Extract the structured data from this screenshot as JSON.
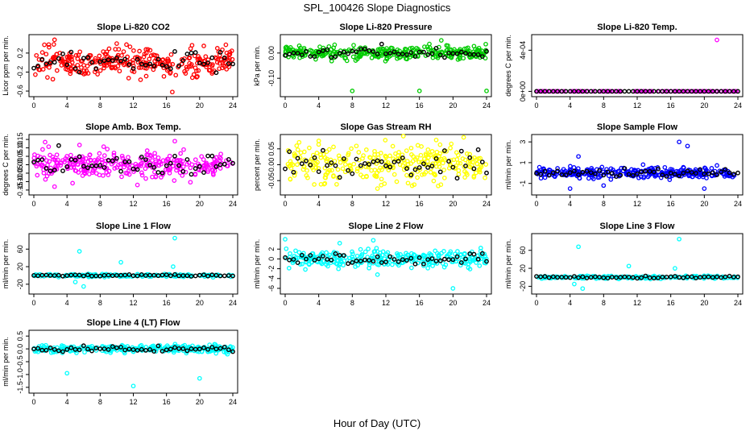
{
  "figure": {
    "title": "SPL_100426  Slope Diagnostics",
    "xlabel": "Hour of Day (UTC)"
  },
  "chart_data": [
    {
      "type": "scatter",
      "title": "Slope Li-820 CO2",
      "ylabel": "Licor ppm per min.",
      "color": "#ff0000",
      "xlim": [
        0,
        24
      ],
      "ylim": [
        -0.65,
        0.52
      ],
      "xticks": [
        0,
        4,
        8,
        12,
        16,
        20,
        24
      ],
      "xtick_labels": [
        "0",
        "4",
        "8",
        "12",
        "16",
        "20",
        "24"
      ],
      "yticks": [
        -0.6,
        -0.2,
        0.2
      ],
      "ytick_labels": [
        "-0.6",
        "-0.2",
        "0.2"
      ],
      "center": 0.0,
      "spread": 0.14,
      "n": 300,
      "outliers": [
        [
          2.5,
          0.48
        ],
        [
          16.7,
          -0.62
        ],
        [
          1.8,
          0.38
        ],
        [
          10.0,
          0.4
        ],
        [
          20.5,
          0.35
        ]
      ]
    },
    {
      "type": "scatter",
      "title": "Slope Li-820 Pressure",
      "ylabel": "kPa per min.",
      "color": "#00cc00",
      "xlim": [
        0,
        24
      ],
      "ylim": [
        -0.16,
        0.06
      ],
      "xticks": [
        0,
        4,
        8,
        12,
        16,
        20,
        24
      ],
      "xtick_labels": [
        "0",
        "4",
        "8",
        "12",
        "16",
        "20",
        "24"
      ],
      "yticks": [
        -0.1,
        0.0
      ],
      "ytick_labels": [
        "-0.10",
        "0.00"
      ],
      "center": 0.0,
      "spread": 0.012,
      "n": 300,
      "outliers": [
        [
          8.0,
          -0.15
        ],
        [
          16.0,
          -0.15
        ],
        [
          24.0,
          -0.15
        ],
        [
          18.6,
          0.05
        ]
      ]
    },
    {
      "type": "scatter",
      "title": "Slope Li-820 Temp.",
      "ylabel": "degrees C per min.",
      "color": "#ff00ff",
      "xlim": [
        0,
        24
      ],
      "ylim": [
        -2e-05,
        0.00052
      ],
      "xticks": [
        0,
        4,
        8,
        12,
        16,
        20,
        24
      ],
      "xtick_labels": [
        "0",
        "4",
        "8",
        "12",
        "16",
        "20",
        "24"
      ],
      "yticks": [
        0,
        0.0004
      ],
      "ytick_labels": [
        "0e+00",
        "4e-04"
      ],
      "center": 0.0,
      "spread": 0.0,
      "n": 120,
      "outliers": [
        [
          21.5,
          0.0005
        ]
      ]
    },
    {
      "type": "scatter",
      "title": "Slope Amb. Box Temp.",
      "ylabel": "degrees C per min.",
      "color": "#ff00ff",
      "xlim": [
        0,
        24
      ],
      "ylim": [
        -0.16,
        0.16
      ],
      "xticks": [
        0,
        4,
        8,
        12,
        16,
        20,
        24
      ],
      "xtick_labels": [
        "0",
        "4",
        "8",
        "12",
        "16",
        "20",
        "24"
      ],
      "yticks": [
        -0.15,
        -0.1,
        -0.05,
        0.0,
        0.05,
        0.1,
        0.15
      ],
      "ytick_labels": [
        "-0.15",
        "-0.10",
        "-0.05",
        "0.00",
        "0.05",
        "0.10",
        "0.15"
      ],
      "center": 0.0,
      "spread": 0.04,
      "n": 300,
      "outliers": [
        [
          2.5,
          -0.13
        ],
        [
          12.5,
          -0.12
        ],
        [
          17.0,
          0.14
        ]
      ]
    },
    {
      "type": "scatter",
      "title": "Slope Gas Stream RH",
      "ylabel": "percent per min.",
      "color": "#ffff00",
      "xlim": [
        0,
        24
      ],
      "ylim": [
        -0.085,
        0.085
      ],
      "xticks": [
        0,
        4,
        8,
        12,
        16,
        20,
        24
      ],
      "xtick_labels": [
        "0",
        "4",
        "8",
        "12",
        "16",
        "20",
        "24"
      ],
      "yticks": [
        -0.05,
        0.0,
        0.05
      ],
      "ytick_labels": [
        "-0.05",
        "0.00",
        "0.05"
      ],
      "center": 0.0,
      "spread": 0.028,
      "n": 300,
      "outliers": [
        [
          4.0,
          0.075
        ],
        [
          18.0,
          0.078
        ],
        [
          11.0,
          -0.075
        ]
      ]
    },
    {
      "type": "scatter",
      "title": "Slope Sample Flow",
      "ylabel": "ml/min per min.",
      "color": "#0000ff",
      "xlim": [
        0,
        24
      ],
      "ylim": [
        -1.8,
        3.4
      ],
      "xticks": [
        0,
        4,
        8,
        12,
        16,
        20,
        24
      ],
      "xtick_labels": [
        "0",
        "4",
        "8",
        "12",
        "16",
        "20",
        "24"
      ],
      "yticks": [
        -1,
        1,
        3
      ],
      "ytick_labels": [
        "-1",
        "1",
        "3"
      ],
      "center": 0.0,
      "spread": 0.25,
      "n": 300,
      "outliers": [
        [
          17.0,
          3.0
        ],
        [
          18.0,
          2.6
        ],
        [
          4.0,
          -1.5
        ],
        [
          20.0,
          -1.5
        ],
        [
          5.0,
          1.6
        ],
        [
          8.0,
          -1.2
        ]
      ]
    },
    {
      "type": "scatter",
      "title": "Slope Line 1 Flow",
      "ylabel": "ml/min per min.",
      "color": "#00ffff",
      "xlim": [
        0,
        24
      ],
      "ylim": [
        -35,
        88
      ],
      "xticks": [
        0,
        4,
        8,
        12,
        16,
        20,
        24
      ],
      "xtick_labels": [
        "0",
        "4",
        "8",
        "12",
        "16",
        "20",
        "24"
      ],
      "yticks": [
        -20,
        20,
        60
      ],
      "ytick_labels": [
        "-20",
        "20",
        "60"
      ],
      "center": 0.0,
      "spread": 1.5,
      "n": 200,
      "outliers": [
        [
          5.5,
          55
        ],
        [
          17.0,
          85
        ],
        [
          6.0,
          -25
        ],
        [
          10.5,
          30
        ],
        [
          5.0,
          -15
        ],
        [
          16.8,
          20
        ]
      ]
    },
    {
      "type": "scatter",
      "title": "Slope Line 2 Flow",
      "ylabel": "ml/min per min.",
      "color": "#00ffff",
      "xlim": [
        0,
        24
      ],
      "ylim": [
        -6.5,
        4.5
      ],
      "xticks": [
        0,
        4,
        8,
        12,
        16,
        20,
        24
      ],
      "xtick_labels": [
        "0",
        "4",
        "8",
        "12",
        "16",
        "20",
        "24"
      ],
      "yticks": [
        -6,
        -4,
        -2,
        0,
        2
      ],
      "ytick_labels": [
        "-6",
        "-4",
        "-2",
        "0",
        "2"
      ],
      "center": 0.0,
      "spread": 0.8,
      "n": 300,
      "outliers": [
        [
          0.0,
          4.0
        ],
        [
          10.5,
          3.8
        ],
        [
          20.0,
          -6.0
        ],
        [
          11.0,
          -3.2
        ],
        [
          6.5,
          3.2
        ]
      ]
    },
    {
      "type": "scatter",
      "title": "Slope Line 3 Flow",
      "ylabel": "ml/min per min.",
      "color": "#00ffff",
      "xlim": [
        0,
        24
      ],
      "ylim": [
        -30,
        90
      ],
      "xticks": [
        0,
        4,
        8,
        12,
        16,
        20,
        24
      ],
      "xtick_labels": [
        "0",
        "4",
        "8",
        "12",
        "16",
        "20",
        "24"
      ],
      "yticks": [
        -20,
        20,
        60
      ],
      "ytick_labels": [
        "-20",
        "20",
        "60"
      ],
      "center": 0.0,
      "spread": 1.5,
      "n": 200,
      "outliers": [
        [
          17.0,
          85
        ],
        [
          5.0,
          68
        ],
        [
          11.0,
          25
        ],
        [
          5.5,
          -25
        ],
        [
          4.5,
          -15
        ],
        [
          16.5,
          20
        ]
      ]
    },
    {
      "type": "scatter",
      "title": "Slope Line 4 (LT) Flow",
      "ylabel": "ml/min per min.",
      "color": "#00ffff",
      "xlim": [
        0,
        24
      ],
      "ylim": [
        -1.6,
        0.6
      ],
      "xticks": [
        0,
        4,
        8,
        12,
        16,
        20,
        24
      ],
      "xtick_labels": [
        "0",
        "4",
        "8",
        "12",
        "16",
        "20",
        "24"
      ],
      "yticks": [
        -1.5,
        -1.0,
        -0.5,
        0.0,
        0.5
      ],
      "ytick_labels": [
        "-1.5",
        "-1.0",
        "-0.5",
        "0.0",
        "0.5"
      ],
      "center": 0.0,
      "spread": 0.07,
      "n": 300,
      "outliers": [
        [
          4.0,
          -0.95
        ],
        [
          20.0,
          -1.15
        ],
        [
          12.0,
          -1.45
        ]
      ]
    }
  ]
}
